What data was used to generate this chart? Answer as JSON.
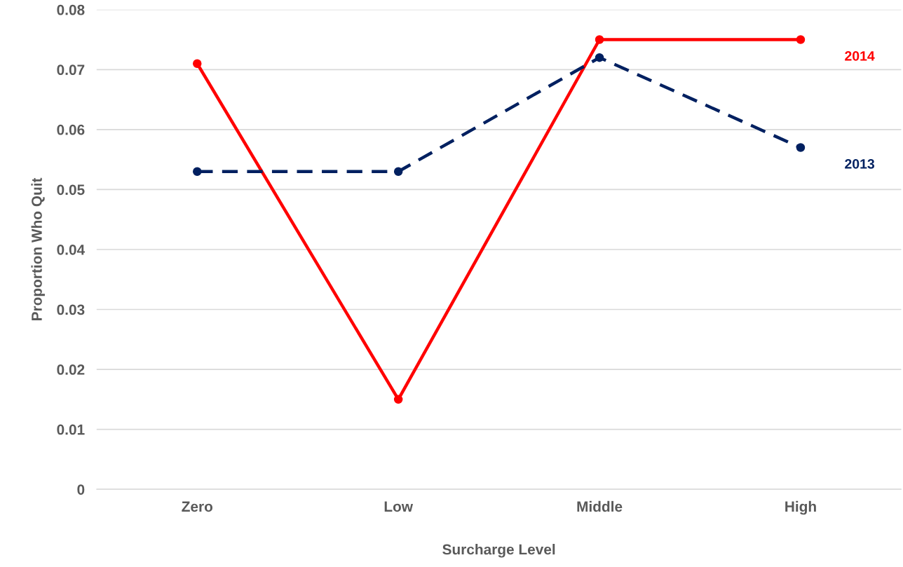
{
  "chart_data": {
    "type": "line",
    "xlabel": "Surcharge Level",
    "ylabel": "Proportion Who Quit",
    "categories": [
      "Zero",
      "Low",
      "Middle",
      "High"
    ],
    "series": [
      {
        "name": "2014",
        "color": "#ff0000",
        "values": [
          0.071,
          0.015,
          0.075,
          0.075
        ],
        "line_style": "solid"
      },
      {
        "name": "2013",
        "color": "#002060",
        "values": [
          0.053,
          0.053,
          0.072,
          0.057
        ],
        "line_style": "dashed"
      }
    ],
    "ylim": [
      0,
      0.08
    ],
    "yticks": [
      0,
      0.01,
      0.02,
      0.03,
      0.04,
      0.05,
      0.06,
      0.07,
      0.08
    ],
    "grid": "y",
    "marker": "circle",
    "legend": false
  }
}
